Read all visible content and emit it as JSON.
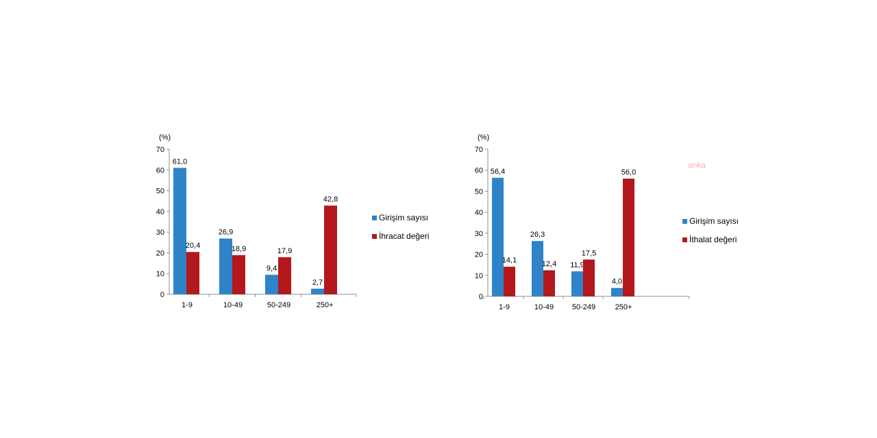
{
  "colors": {
    "series1": "#2e83c9",
    "series2": "#b3181c"
  },
  "watermark": "anka",
  "chart_data": [
    {
      "type": "bar",
      "unit_label": "(%)",
      "categories": [
        "1-9",
        "10-49",
        "50-249",
        "250+"
      ],
      "series": [
        {
          "name": "Girişim sayısı",
          "values": [
            61.0,
            26.9,
            9.4,
            2.7
          ],
          "labels": [
            "61,0",
            "26,9",
            "9,4",
            "2,7"
          ]
        },
        {
          "name": "İhracat değeri",
          "values": [
            20.4,
            18.9,
            17.9,
            42.8
          ],
          "labels": [
            "20,4",
            "18,9",
            "17,9",
            "42,8"
          ]
        }
      ],
      "ylim": [
        0,
        70
      ],
      "yticks": [
        0,
        10,
        20,
        30,
        40,
        50,
        60,
        70
      ],
      "legend_position": "right",
      "grid": false
    },
    {
      "type": "bar",
      "unit_label": "(%)",
      "categories": [
        "1-9",
        "10-49",
        "50-249",
        "250+"
      ],
      "series": [
        {
          "name": "Girişim sayısı",
          "values": [
            56.4,
            26.3,
            11.9,
            4.0
          ],
          "labels": [
            "56,4",
            "26,3",
            "11,9",
            "4,0"
          ]
        },
        {
          "name": "İthalat değeri",
          "values": [
            14.1,
            12.4,
            17.5,
            56.0
          ],
          "labels": [
            "14,1",
            "12,4",
            "17,5",
            "56,0"
          ]
        }
      ],
      "ylim": [
        0,
        70
      ],
      "yticks": [
        0,
        10,
        20,
        30,
        40,
        50,
        60,
        70
      ],
      "legend_position": "right",
      "grid": false
    }
  ]
}
